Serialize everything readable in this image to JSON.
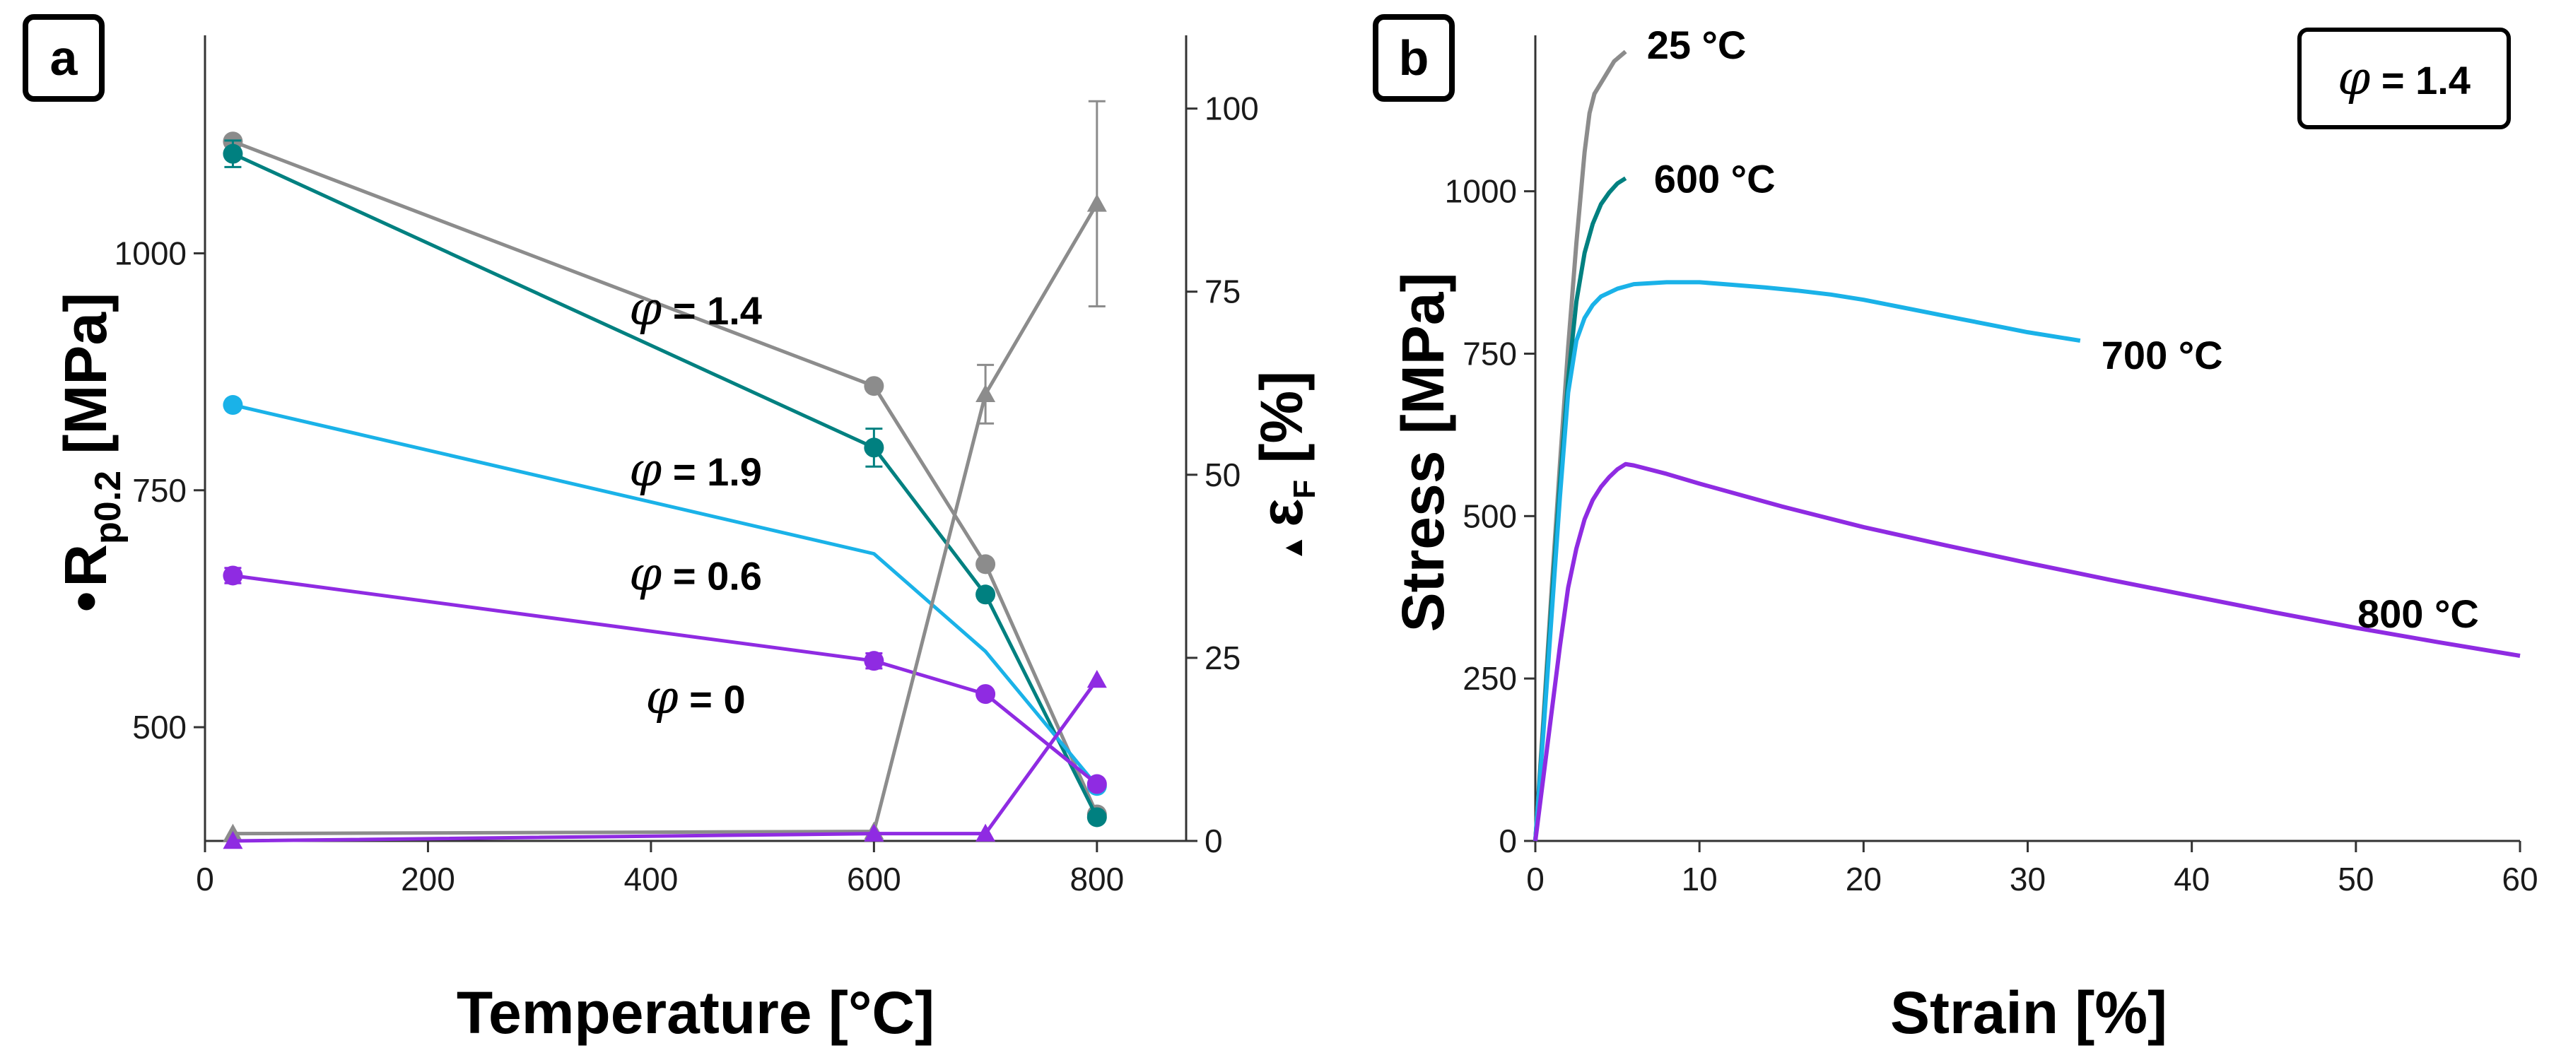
{
  "chart_data": [
    {
      "panel": "a",
      "type": "line",
      "xlabel": "Temperature [°C]",
      "ylabel": "Rp0.2 [MPa]",
      "ylabel_parts": {
        "marker": "•",
        "symbol": "R",
        "subscript": "p0.2",
        "unit": " [MPa]"
      },
      "y2label": "εF [%]",
      "y2label_parts": {
        "marker": "▲",
        "symbol": "ε",
        "subscript": "F",
        "unit": " [%]"
      },
      "xlim": [
        0,
        880
      ],
      "ylim": [
        380,
        1230
      ],
      "y2lim": [
        0,
        110
      ],
      "xticks": [
        "0",
        "200",
        "400",
        "600",
        "800"
      ],
      "xtick_values": [
        0,
        200,
        400,
        600,
        800
      ],
      "yticks": [
        "500",
        "750",
        "1000"
      ],
      "ytick_values": [
        500,
        750,
        1000
      ],
      "y2ticks": [
        "0",
        "25",
        "50",
        "75",
        "100"
      ],
      "y2tick_values": [
        0,
        25,
        50,
        75,
        100
      ],
      "annotations": [
        {
          "text": " = 1.4",
          "symbol": "φ",
          "x": 440,
          "y": 925
        },
        {
          "text": " = 1.9",
          "symbol": "φ",
          "x": 440,
          "y": 755
        },
        {
          "text": " = 0.6",
          "symbol": "φ",
          "x": 440,
          "y": 645
        },
        {
          "text": " = 0",
          "symbol": "φ",
          "x": 440,
          "y": 515
        }
      ],
      "series": [
        {
          "marker": "circle",
          "axis": "left",
          "color": "#8c8c8c",
          "x": [
            25,
            600,
            700,
            800
          ],
          "y": [
            1118,
            860,
            672,
            408
          ],
          "err": [
            0,
            0,
            0,
            0
          ]
        },
        {
          "marker": "circle",
          "axis": "left",
          "color": "#008080",
          "x": [
            25,
            600,
            700,
            800
          ],
          "y": [
            1105,
            795,
            640,
            405
          ],
          "err": [
            14,
            20,
            0,
            0
          ]
        },
        {
          "marker": "circle",
          "axis": "left",
          "color": "#1ab2e8",
          "x": [
            25,
            600,
            700,
            800
          ],
          "y": [
            840,
            683,
            580,
            438
          ],
          "marker_idx": [
            0,
            3
          ],
          "err": [
            0,
            0,
            0,
            0
          ]
        },
        {
          "marker": "circle",
          "axis": "left",
          "color": "#8f2be2",
          "x": [
            25,
            600,
            700,
            800
          ],
          "y": [
            660,
            570,
            535,
            440
          ],
          "err": [
            8,
            8,
            0,
            0
          ]
        },
        {
          "marker": "triangle",
          "axis": "right",
          "color": "#8c8c8c",
          "x": [
            25,
            600,
            700,
            800
          ],
          "y": [
            1,
            1.3,
            61,
            87
          ],
          "err": [
            0,
            0,
            4,
            14
          ]
        },
        {
          "marker": "triangle",
          "axis": "right",
          "color": "#8f2be2",
          "x": [
            25,
            600,
            700,
            800
          ],
          "y": [
            0,
            1,
            1,
            22
          ],
          "err": [
            0,
            0,
            0,
            0
          ]
        }
      ]
    },
    {
      "panel": "b",
      "type": "line",
      "xlabel": "Strain [%]",
      "ylabel": "Stress [MPa]",
      "xlim": [
        0,
        60
      ],
      "ylim": [
        0,
        1240
      ],
      "xticks": [
        "0",
        "10",
        "20",
        "30",
        "40",
        "50",
        "60"
      ],
      "xtick_values": [
        0,
        10,
        20,
        30,
        40,
        50,
        60
      ],
      "yticks": [
        "0",
        "250",
        "500",
        "750",
        "1000"
      ],
      "ytick_values": [
        0,
        250,
        500,
        750,
        1000
      ],
      "legend_box": {
        "symbol": "φ",
        "text": " = 1.4",
        "placement": "top-right"
      },
      "series": [
        {
          "label": "25 °C",
          "color": "#8c8c8c",
          "x": [
            0,
            0.5,
            1,
            1.5,
            2,
            2.5,
            3,
            3.3,
            3.6,
            4.2,
            4.8,
            5.5
          ],
          "y": [
            0,
            190,
            390,
            580,
            760,
            920,
            1060,
            1120,
            1150,
            1175,
            1200,
            1215
          ]
        },
        {
          "label": "600 °C",
          "color": "#008080",
          "x": [
            0,
            0.5,
            1,
            1.5,
            2,
            2.5,
            3,
            3.5,
            4,
            4.5,
            5,
            5.5
          ],
          "y": [
            0,
            180,
            370,
            550,
            710,
            830,
            905,
            950,
            980,
            998,
            1012,
            1020
          ]
        },
        {
          "label": "700 °C",
          "color": "#1ab2e8",
          "x": [
            0,
            0.5,
            1,
            1.5,
            2,
            2.5,
            3,
            3.5,
            4,
            5,
            6,
            8,
            10,
            12,
            14,
            16,
            18,
            20,
            22,
            24,
            26,
            28,
            30,
            33.2
          ],
          "y": [
            0,
            170,
            350,
            530,
            690,
            770,
            805,
            825,
            838,
            850,
            857,
            860,
            860,
            856,
            852,
            847,
            841,
            833,
            823,
            813,
            803,
            793,
            783,
            770
          ]
        },
        {
          "label": "800 °C",
          "color": "#8f2be2",
          "x": [
            0,
            0.5,
            1,
            1.5,
            2,
            2.5,
            3,
            3.5,
            4,
            4.5,
            5,
            5.5,
            6,
            8,
            10,
            15,
            20,
            25,
            30,
            35,
            40,
            45,
            50,
            55,
            60
          ],
          "y": [
            0,
            100,
            200,
            300,
            390,
            450,
            495,
            525,
            545,
            560,
            572,
            580,
            578,
            565,
            550,
            515,
            483,
            455,
            428,
            402,
            377,
            352,
            328,
            306,
            285
          ]
        }
      ]
    }
  ]
}
